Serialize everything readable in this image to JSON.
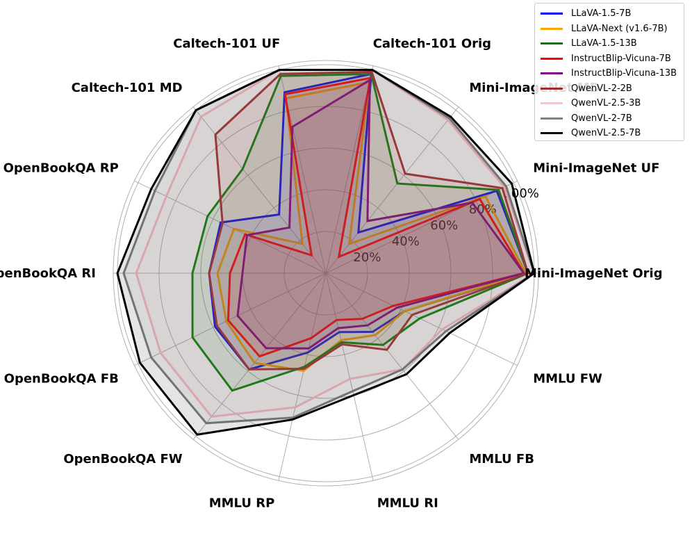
{
  "chart_data": {
    "type": "radar",
    "title": "",
    "axes": [
      "Mini-ImageNet Orig",
      "Mini-ImageNet UF",
      "Mini-ImageNet MD",
      "Caltech-101 Orig",
      "Caltech-101 UF",
      "Caltech-101 MD",
      "OpenBookQA RP",
      "OpenBookQA RI",
      "OpenBookQA FB",
      "OpenBookQA FW",
      "MMLU RP",
      "MMLU RI",
      "MMLU FB",
      "MMLU FW"
    ],
    "radial_ticks": [
      "20%",
      "40%",
      "60%",
      "80%",
      "100%"
    ],
    "radial_tick_values": [
      20,
      40,
      60,
      80,
      100
    ],
    "rmax": 102,
    "series": [
      {
        "name": "LLaVA-1.5-7B",
        "color": "#0000ff",
        "values": [
          97,
          91,
          25,
          98,
          89,
          36,
          56,
          56,
          59,
          59,
          39,
          29,
          36,
          42
        ]
      },
      {
        "name": "LLaVA-Next (v1.6-7B)",
        "color": "#ffa500",
        "values": [
          96,
          85,
          18,
          94,
          86,
          18,
          49,
          52,
          53,
          55,
          48,
          33,
          38,
          42
        ]
      },
      {
        "name": "LLaVA-1.5-13B",
        "color": "#008000",
        "values": [
          97,
          92,
          55,
          98,
          97,
          64,
          63,
          64,
          71,
          72,
          46,
          34,
          44,
          50
        ]
      },
      {
        "name": "InstructBlip-Vicuna-7B",
        "color": "#ff0000",
        "values": [
          95,
          82,
          10,
          96,
          88,
          11,
          43,
          46,
          52,
          51,
          32,
          23,
          28,
          36
        ]
      },
      {
        "name": "InstructBlip-Vicuna-13B",
        "color": "#800080",
        "values": [
          95,
          78,
          32,
          95,
          72,
          28,
          42,
          40,
          47,
          46,
          37,
          27,
          32,
          38
        ]
      },
      {
        "name": "QwenVL-2-2B",
        "color": "#a52a2a",
        "values": [
          97,
          94,
          61,
          99,
          98,
          85,
          55,
          56,
          58,
          59,
          47,
          35,
          47,
          46
        ]
      },
      {
        "name": "QwenVL-2.5-3B",
        "color": "#ffc0cb",
        "values": [
          100,
          95,
          94,
          100,
          100,
          96,
          85,
          91,
          88,
          88,
          66,
          52,
          59,
          62
        ]
      },
      {
        "name": "QwenVL-2-7B",
        "color": "#808080",
        "values": [
          100,
          96,
          95,
          100,
          100,
          100,
          91,
          97,
          93,
          92,
          71,
          58,
          59,
          64
        ]
      },
      {
        "name": "QwenVL-2.5-7B",
        "color": "#000000",
        "values": [
          100,
          99,
          96,
          100,
          100,
          100,
          93,
          100,
          99,
          99,
          72,
          60,
          62,
          66
        ]
      }
    ]
  }
}
